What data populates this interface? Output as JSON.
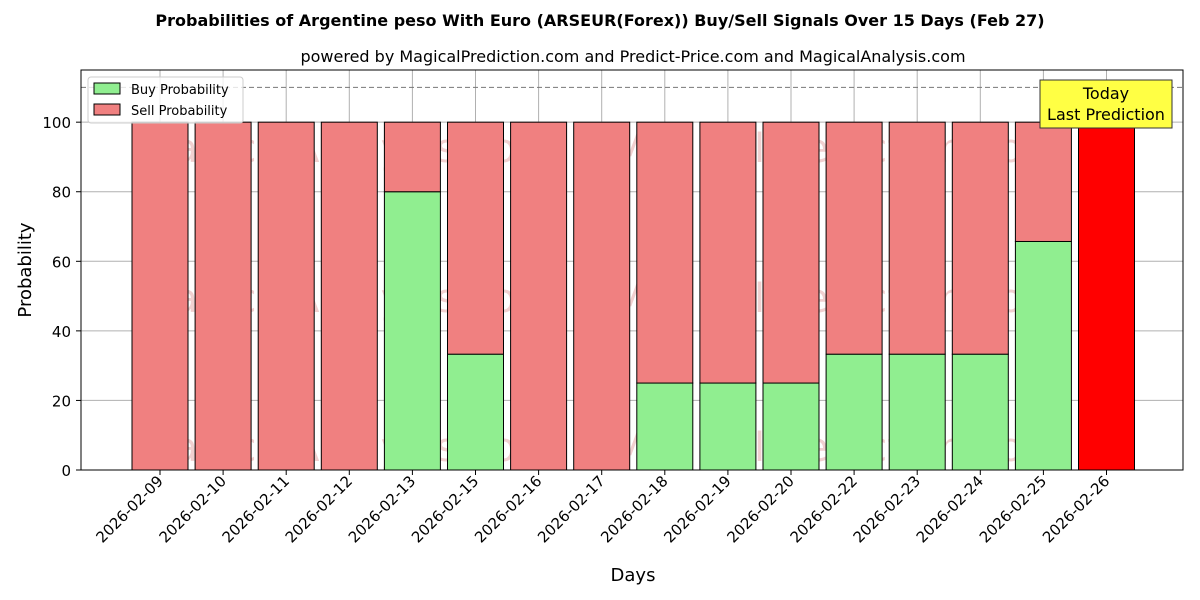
{
  "chart_data": {
    "type": "bar",
    "title": "Probabilities of Argentine peso With Euro (ARSEUR(Forex)) Buy/Sell Signals Over 15 Days (Feb 27)",
    "subtitle": "powered by MagicalPrediction.com and Predict-Price.com and MagicalAnalysis.com",
    "xlabel": "Days",
    "ylabel": "Probability",
    "ylim": [
      0,
      115
    ],
    "yticks": [
      "0",
      "20",
      "40",
      "60",
      "80",
      "100"
    ],
    "categories": [
      "2026-02-09",
      "2026-02-10",
      "2026-02-11",
      "2026-02-12",
      "2026-02-13",
      "2026-02-15",
      "2026-02-16",
      "2026-02-17",
      "2026-02-18",
      "2026-02-19",
      "2026-02-20",
      "2026-02-22",
      "2026-02-23",
      "2026-02-24",
      "2026-02-25",
      "2026-02-26"
    ],
    "series": [
      {
        "name": "Buy Probability",
        "color": "#90ee90",
        "values": [
          0,
          0,
          0,
          0,
          80,
          33.3,
          0,
          0,
          25,
          25,
          25,
          33.3,
          33.3,
          33.3,
          65.7,
          0
        ]
      },
      {
        "name": "Sell Probability",
        "color": "#f08080",
        "values": [
          100,
          100,
          100,
          100,
          20,
          66.7,
          100,
          100,
          75,
          75,
          75,
          66.7,
          66.7,
          66.7,
          34.3,
          100
        ]
      }
    ],
    "highlight": {
      "index": 15,
      "color": "#ff0000"
    },
    "reference_line": 110,
    "annotation": {
      "line1": "Today",
      "line2": "Last Prediction",
      "color": "#ffff44"
    },
    "legend_position": "top-left",
    "grid": true,
    "watermarks": [
      "MagicalAnalysis.com",
      "MagicalPrediction.com"
    ]
  }
}
